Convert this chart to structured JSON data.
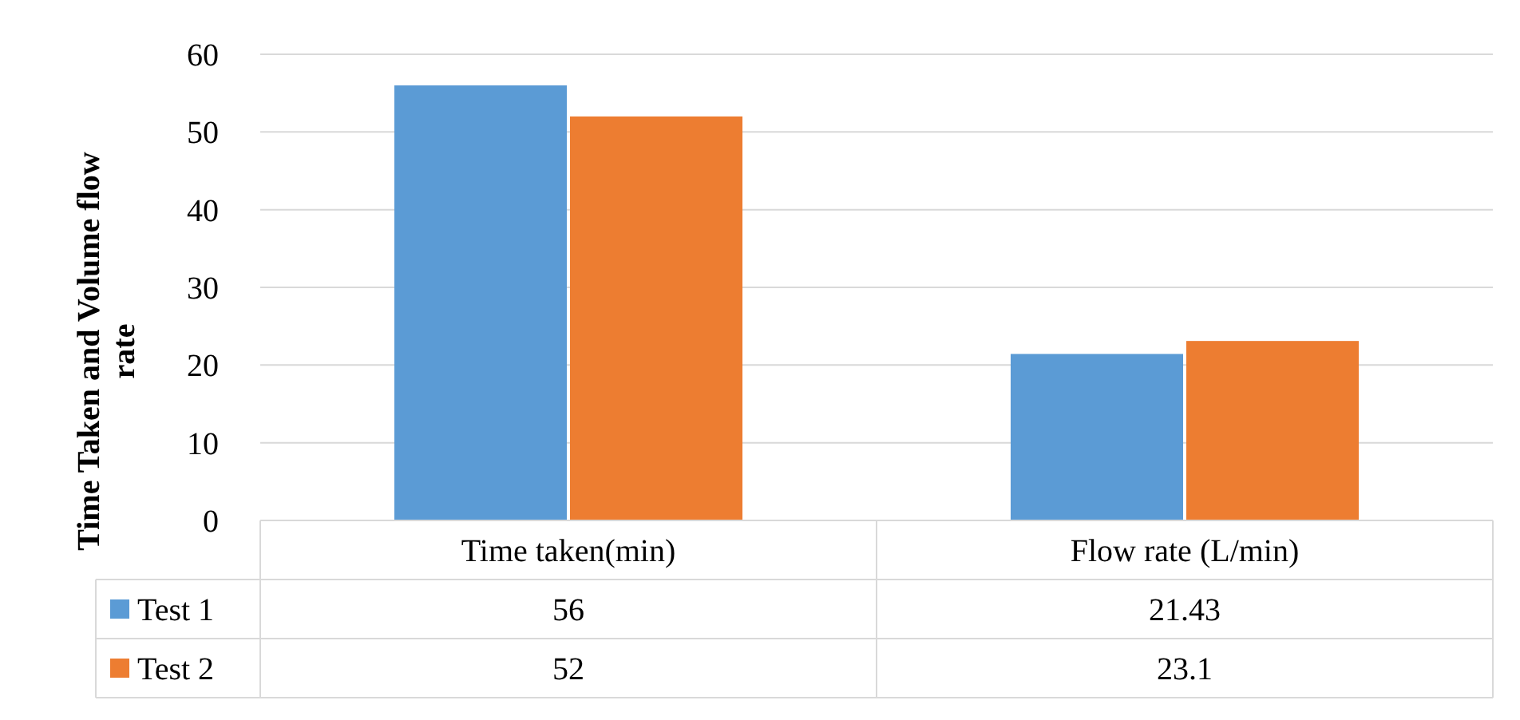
{
  "chart_data": {
    "type": "bar",
    "ylabel": "Time Taken and Volume flow rate",
    "categories": [
      "Time taken(min)",
      "Flow rate (L/min)"
    ],
    "series": [
      {
        "name": "Test 1",
        "color": "#5b9bd5",
        "values": [
          56,
          21.43
        ]
      },
      {
        "name": "Test 2",
        "color": "#ed7d31",
        "values": [
          52,
          23.1
        ]
      }
    ],
    "ylim": [
      0,
      60
    ],
    "yticks": [
      0,
      10,
      20,
      30,
      40,
      50,
      60
    ],
    "grid": "y",
    "legend": "bottom",
    "data_labels": true
  }
}
